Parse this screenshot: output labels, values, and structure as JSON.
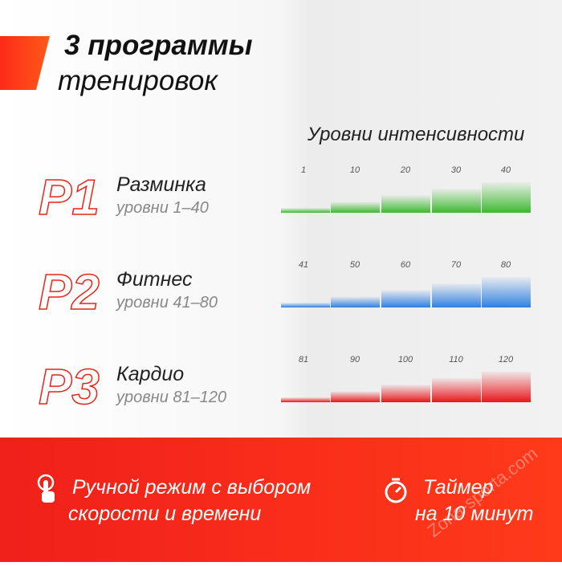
{
  "header": {
    "title_line1": "3 программы",
    "title_line2": "тренировок"
  },
  "levels_heading": "Уровни интенсивности",
  "programs": [
    {
      "code": "P1",
      "name": "Разминка",
      "range": "уровни 1–40",
      "color": "#3cb82e",
      "levels": [
        1,
        10,
        20,
        30,
        40
      ]
    },
    {
      "code": "P2",
      "name": "Фитнес",
      "range": "уровни 41–80",
      "color": "#2f7fe0",
      "levels": [
        41,
        50,
        60,
        70,
        80
      ]
    },
    {
      "code": "P3",
      "name": "Кардио",
      "range": "уровни 81–120",
      "color": "#e8151b",
      "levels": [
        81,
        90,
        100,
        110,
        120
      ]
    }
  ],
  "footer": {
    "manual_line1": "Ручной режим с выбором",
    "manual_line2": "скорости и времени",
    "timer_line1": "Таймер",
    "timer_line2": "на 10 минут"
  },
  "watermark": "Zona-sporta.com"
}
